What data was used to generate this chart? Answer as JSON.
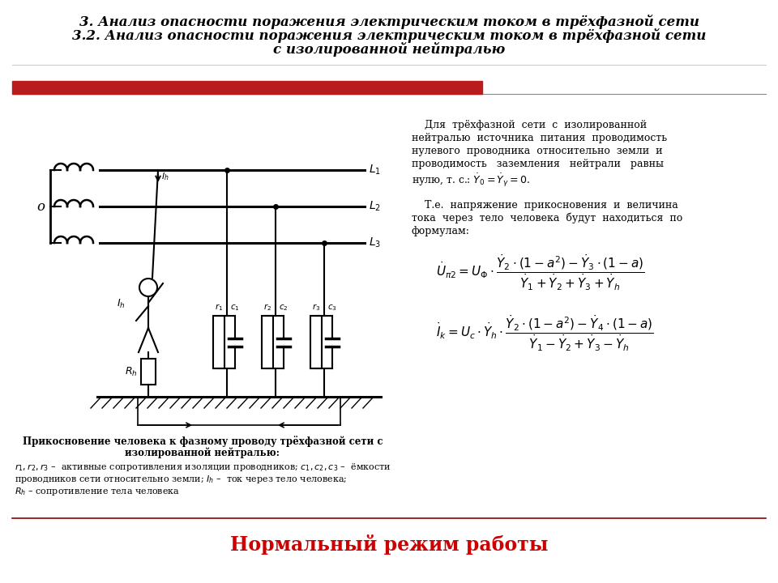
{
  "title_line1": "3. Анализ опасности поражения электрическим током в трёхфазной сети",
  "title_line2": "3.2. Анализ опасности поражения электрическим током в трёхфазной сети",
  "title_line3": "с изолированной нейтралью",
  "footer_text": "Нормальный режим работы",
  "bg_color": "#ffffff",
  "red_bar_color": "#b81c1c",
  "separator_color": "#8B0000",
  "text_color": "#000000",
  "footer_color": "#cc0000",
  "title_fontsize": 12,
  "body_fontsize": 9,
  "caption_fontsize": 8.5
}
